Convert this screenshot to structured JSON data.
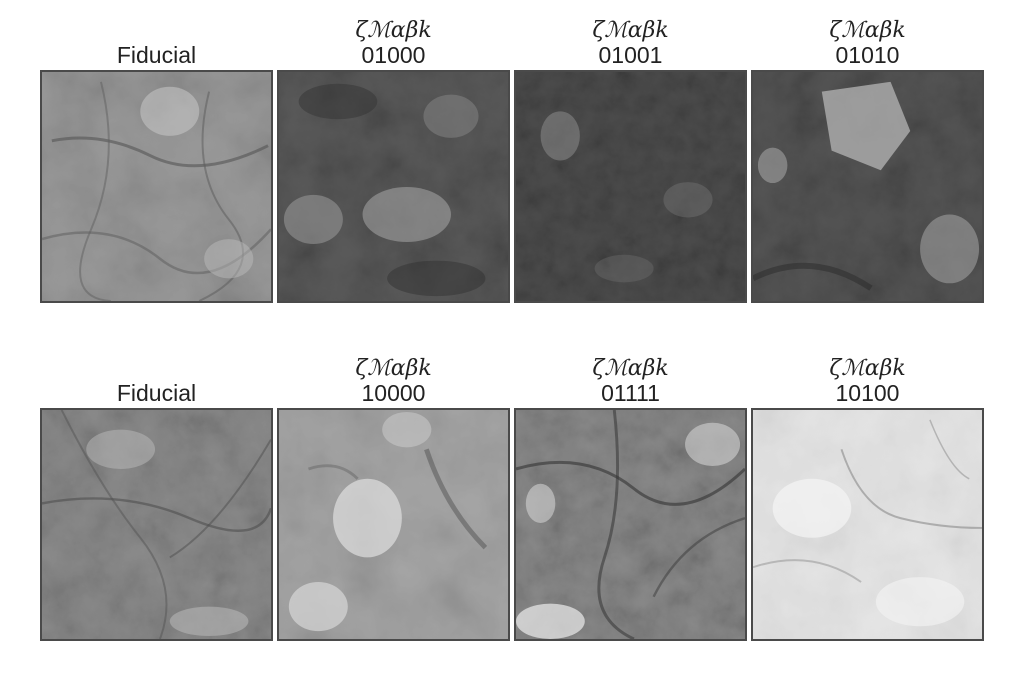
{
  "rows": [
    {
      "panels": [
        {
          "math": "",
          "code": "Fiducial",
          "tone": "#9a9a9a",
          "pattern": "fiducial-a"
        },
        {
          "math": "ζℳαβk",
          "code": "01000",
          "tone": "#5a5a5a",
          "pattern": "dark-mixed"
        },
        {
          "math": "ζℳαβk",
          "code": "01001",
          "tone": "#4a4a4a",
          "pattern": "dark-fine"
        },
        {
          "math": "ζℳαβk",
          "code": "01010",
          "tone": "#555555",
          "pattern": "dark-bright-top"
        }
      ]
    },
    {
      "panels": [
        {
          "math": "",
          "code": "Fiducial",
          "tone": "#8c8c8c",
          "pattern": "fiducial-b"
        },
        {
          "math": "ζℳαβk",
          "code": "10000",
          "tone": "#a3a3a3",
          "pattern": "mid-bright"
        },
        {
          "math": "ζℳαβk",
          "code": "01111",
          "tone": "#8a8a8a",
          "pattern": "mid-filaments"
        },
        {
          "math": "ζℳαβk",
          "code": "10100",
          "tone": "#e3e3e3",
          "pattern": "very-bright"
        }
      ]
    }
  ]
}
